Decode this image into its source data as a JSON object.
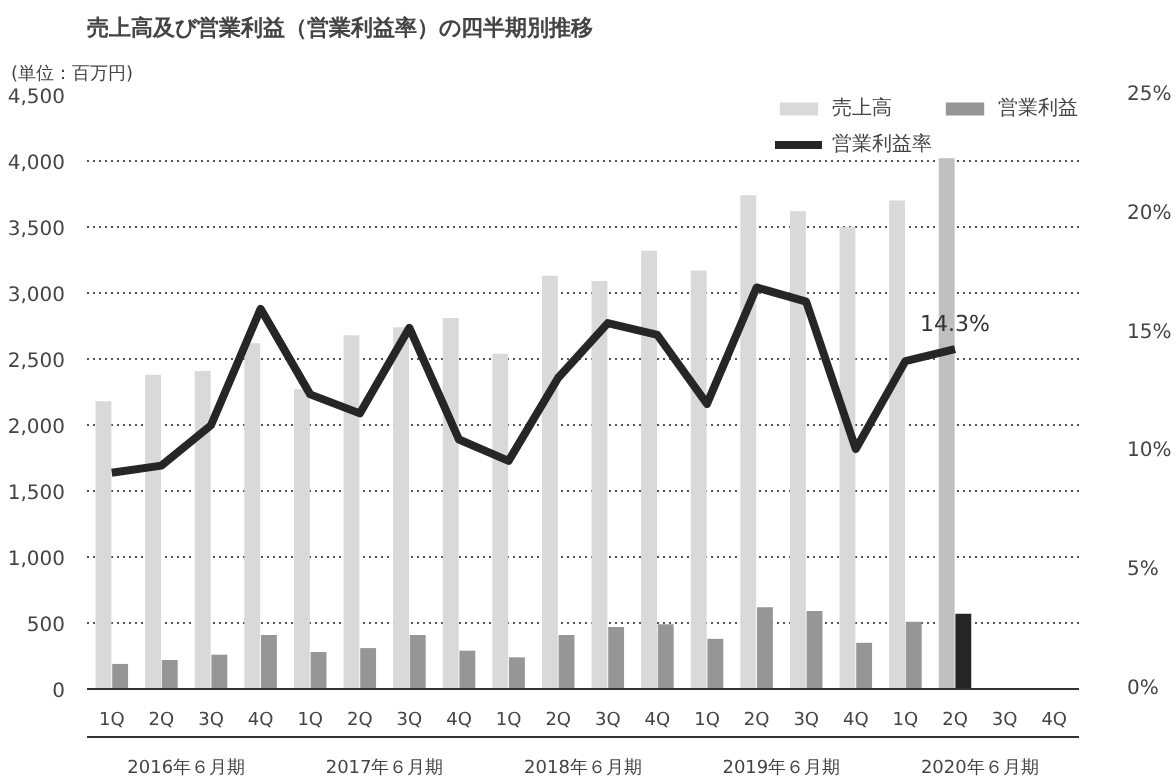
{
  "chart_data": {
    "type": "bar",
    "title": "売上高及び営業利益（営業利益率）の四半期別推移",
    "ylabel": "(単位：百万円)",
    "categories": [
      "1Q",
      "2Q",
      "3Q",
      "4Q",
      "1Q",
      "2Q",
      "3Q",
      "4Q",
      "1Q",
      "2Q",
      "3Q",
      "4Q",
      "1Q",
      "2Q",
      "3Q",
      "4Q",
      "1Q",
      "2Q",
      "3Q",
      "4Q"
    ],
    "annotations": [
      "2016年６月期",
      "2017年６月期",
      "2018年６月期",
      "2019年６月期",
      "2020年６月期"
    ],
    "series": [
      {
        "name": "売上高",
        "color": "#d9d9d9",
        "colors": [
          "#d9d9d9",
          "#d9d9d9",
          "#d9d9d9",
          "#d9d9d9",
          "#d9d9d9",
          "#d9d9d9",
          "#d9d9d9",
          "#d9d9d9",
          "#d9d9d9",
          "#d9d9d9",
          "#d9d9d9",
          "#d9d9d9",
          "#d9d9d9",
          "#d9d9d9",
          "#d9d9d9",
          "#d9d9d9",
          "#d9d9d9",
          "#bfbfbf",
          "#d9d9d9",
          "#d9d9d9"
        ],
        "values": [
          2180,
          2380,
          2410,
          2620,
          2270,
          2680,
          2740,
          2810,
          2540,
          3130,
          3090,
          3320,
          3170,
          3740,
          3620,
          3500,
          3700,
          4020,
          null,
          null
        ]
      },
      {
        "name": "営業利益",
        "color": "#969696",
        "colors": [
          "#969696",
          "#969696",
          "#969696",
          "#969696",
          "#969696",
          "#969696",
          "#969696",
          "#969696",
          "#969696",
          "#969696",
          "#969696",
          "#969696",
          "#969696",
          "#969696",
          "#969696",
          "#969696",
          "#969696",
          "#262626",
          "#969696",
          "#969696"
        ],
        "values": [
          190,
          220,
          260,
          410,
          280,
          310,
          410,
          290,
          240,
          410,
          470,
          490,
          380,
          620,
          590,
          350,
          510,
          570,
          null,
          null
        ]
      },
      {
        "name": "営業利益率",
        "type": "line",
        "axis": "y2",
        "color": "#262626",
        "values": [
          9.1,
          9.4,
          11.1,
          16.0,
          12.4,
          11.6,
          15.2,
          10.5,
          9.6,
          13.1,
          15.4,
          14.9,
          12.0,
          16.9,
          16.3,
          10.1,
          13.8,
          14.3,
          null,
          null
        ],
        "value_labels": [
          null,
          null,
          null,
          null,
          null,
          null,
          null,
          null,
          null,
          null,
          null,
          null,
          null,
          null,
          null,
          null,
          null,
          "14.3%",
          null,
          null
        ]
      }
    ],
    "ylim": [
      0,
      4500
    ],
    "yticks": [
      0,
      500,
      {
        "value": 1000,
        "label": "1,000"
      },
      {
        "value": 1500,
        "label": "1,500"
      },
      {
        "value": 2000,
        "label": "2,000"
      },
      {
        "value": 2500,
        "label": "2,500"
      },
      {
        "value": 3000,
        "label": "3,000"
      },
      {
        "value": 3500,
        "label": "3,500"
      },
      {
        "value": 4000,
        "label": "4,000"
      },
      {
        "value": 4500,
        "label": "4,500"
      }
    ],
    "y2lim": [
      0,
      25
    ],
    "y2ticks": [
      {
        "value": 0,
        "label": "0%"
      },
      {
        "value": 5,
        "label": "5%"
      },
      {
        "value": 10,
        "label": "10%"
      },
      {
        "value": 15,
        "label": "15%"
      },
      {
        "value": 20,
        "label": "20%"
      },
      {
        "value": 25,
        "label": "25%"
      }
    ],
    "grid": "y",
    "legend": "top right"
  }
}
